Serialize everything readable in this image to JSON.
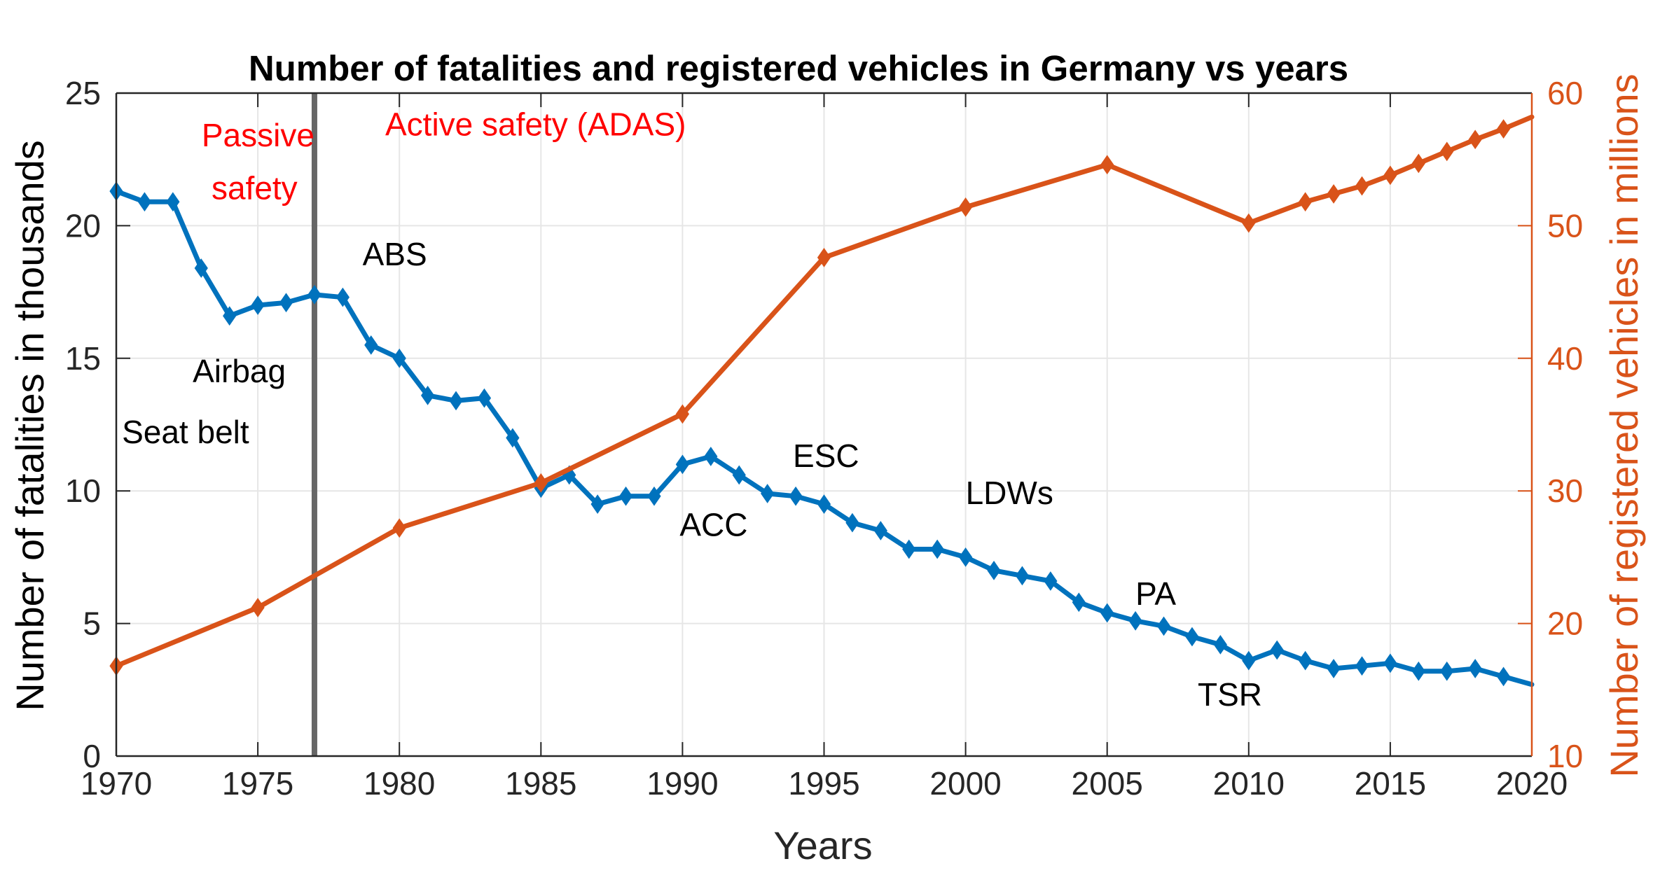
{
  "chart_data": {
    "type": "line",
    "title": "Number of fatalities and registered vehicles in Germany vs years",
    "xlabel": "Years",
    "ylabel_left": "Number of fatalities in thousands",
    "ylabel_right": "Number of registered vehicles in millions",
    "xlim": [
      1970,
      2020
    ],
    "ylim_left": [
      0,
      25
    ],
    "ylim_right": [
      10,
      60
    ],
    "x_ticks": [
      "1970",
      "1975",
      "1980",
      "1985",
      "1990",
      "1995",
      "2000",
      "2005",
      "2010",
      "2015",
      "2020"
    ],
    "y_left_ticks": [
      "0",
      "5",
      "10",
      "15",
      "20",
      "25"
    ],
    "y_right_ticks": [
      "10",
      "20",
      "30",
      "40",
      "50",
      "60"
    ],
    "grid": true,
    "colors": {
      "fatalities": "#0072BD",
      "vehicles": "#D95319",
      "annotation_red": "#FF0000",
      "divider": "#666666",
      "grid": "#E6E6E6"
    },
    "series": [
      {
        "name": "Fatalities (thousands)",
        "axis": "left",
        "color": "#0072BD",
        "x": [
          1970,
          1971,
          1972,
          1973,
          1974,
          1975,
          1976,
          1977,
          1978,
          1979,
          1980,
          1981,
          1982,
          1983,
          1984,
          1985,
          1986,
          1987,
          1988,
          1989,
          1990,
          1991,
          1992,
          1993,
          1994,
          1995,
          1996,
          1997,
          1998,
          1999,
          2000,
          2001,
          2002,
          2003,
          2004,
          2005,
          2006,
          2007,
          2008,
          2009,
          2010,
          2011,
          2012,
          2013,
          2014,
          2015,
          2016,
          2017,
          2018,
          2019,
          2020
        ],
        "y": [
          21.3,
          20.9,
          20.9,
          18.4,
          16.6,
          17.0,
          17.1,
          17.4,
          17.3,
          15.5,
          15.0,
          13.6,
          13.4,
          13.5,
          12.0,
          10.1,
          10.6,
          9.5,
          9.8,
          9.8,
          11.0,
          11.3,
          10.6,
          9.9,
          9.8,
          9.5,
          8.8,
          8.5,
          7.8,
          7.8,
          7.5,
          7.0,
          6.8,
          6.6,
          5.8,
          5.4,
          5.1,
          4.9,
          4.5,
          4.2,
          3.6,
          4.0,
          3.6,
          3.3,
          3.4,
          3.5,
          3.2,
          3.2,
          3.3,
          3.0,
          2.7
        ],
        "markers": "diamond",
        "marker_last": false
      },
      {
        "name": "Registered vehicles (millions)",
        "axis": "right",
        "color": "#D95319",
        "x": [
          1970,
          1975,
          1980,
          1985,
          1990,
          1995,
          2000,
          2005,
          2010,
          2012,
          2013,
          2014,
          2015,
          2016,
          2017,
          2018,
          2019,
          2020
        ],
        "y": [
          16.8,
          21.2,
          27.2,
          30.6,
          35.8,
          47.6,
          51.4,
          54.6,
          50.2,
          51.8,
          52.4,
          53.0,
          53.8,
          54.7,
          55.6,
          56.5,
          57.3,
          58.2
        ],
        "markers": "diamond",
        "marker_last": false
      }
    ],
    "vertical_line": {
      "x": 1977
    },
    "annotations": [
      {
        "text": "Passive",
        "x": 1977.0,
        "y": 23.0,
        "axis": "left",
        "color": "red",
        "anchor": "end"
      },
      {
        "text": "safety",
        "x": 1976.4,
        "y": 21.0,
        "axis": "left",
        "color": "red",
        "anchor": "end"
      },
      {
        "text": "Active safety (ADAS)",
        "x": 1979.5,
        "y": 23.4,
        "axis": "left",
        "color": "red",
        "anchor": "start"
      },
      {
        "text": "ABS",
        "x": 1978.7,
        "y": 18.5,
        "axis": "left",
        "color": "black",
        "anchor": "start"
      },
      {
        "text": "Airbag",
        "x": 1972.7,
        "y": 14.1,
        "axis": "left",
        "color": "black",
        "anchor": "start"
      },
      {
        "text": "Seat belt",
        "x": 1970.2,
        "y": 11.8,
        "axis": "left",
        "color": "black",
        "anchor": "start"
      },
      {
        "text": "ACC",
        "x": 1989.9,
        "y": 8.3,
        "axis": "left",
        "color": "black",
        "anchor": "start"
      },
      {
        "text": "ESC",
        "x": 1993.9,
        "y": 10.9,
        "axis": "left",
        "color": "black",
        "anchor": "start"
      },
      {
        "text": "LDWs",
        "x": 2000.0,
        "y": 9.5,
        "axis": "left",
        "color": "black",
        "anchor": "start"
      },
      {
        "text": "PA",
        "x": 2006.0,
        "y": 5.7,
        "axis": "left",
        "color": "black",
        "anchor": "start"
      },
      {
        "text": "TSR",
        "x": 2008.2,
        "y": 1.9,
        "axis": "left",
        "color": "black",
        "anchor": "start"
      }
    ]
  }
}
